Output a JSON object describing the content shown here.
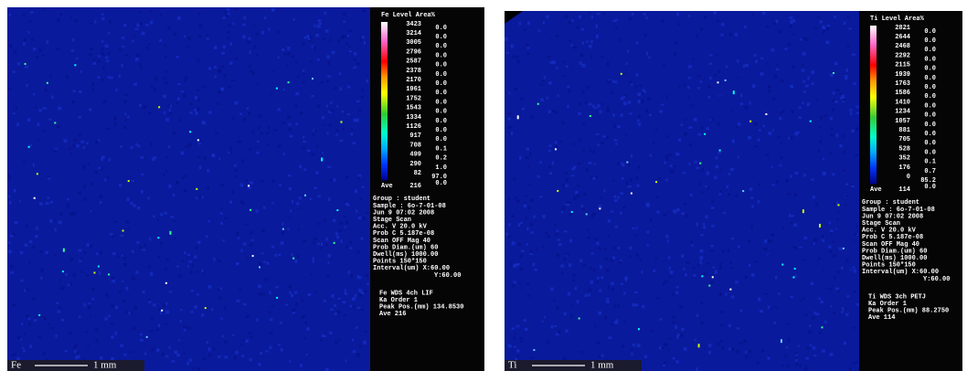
{
  "panels": [
    {
      "element": "Fe",
      "scale": "1 mm",
      "legend": {
        "header": "Fe Level Area%",
        "levels": [
          "3423",
          "3214",
          "3005",
          "2796",
          "2587",
          "2378",
          "2170",
          "1961",
          "1752",
          "1543",
          "1334",
          "1126",
          "917",
          "708",
          "499",
          "290",
          "82"
        ],
        "areas": [
          "0.0",
          "0.0",
          "0.0",
          "0.0",
          "0.0",
          "0.0",
          "0.0",
          "0.0",
          "0.0",
          "0.0",
          "0.0",
          "0.0",
          "0.0",
          "0.1",
          "0.2",
          "1.0",
          "97.0"
        ],
        "ave_label": "Ave",
        "ave_value": "216",
        "ave_area": "0.0"
      },
      "info": [
        "Group : student",
        "Sample : 6o-7-01-08",
        "Jun 9 07:02 2008",
        "Stage Scan",
        "Acc. V    20.0 kV",
        "Prob C  5.187e-08",
        "Scan OFF  Mag 40",
        "Prob Diam.(um) 60",
        "Dwell(ms) 1000.00",
        "Points  150*150",
        "Interval(um) X:60.00",
        "Y:60.00"
      ],
      "spectrometer": [
        "Fe WDS  4ch  LIF",
        "Ka        Order 1",
        "Peak Pos.(mm) 134.8530",
        "Ave        216"
      ]
    },
    {
      "element": "Ti",
      "scale": "1 mm",
      "legend": {
        "header": "Ti Level Area%",
        "levels": [
          "2821",
          "2644",
          "2468",
          "2292",
          "2115",
          "1939",
          "1763",
          "1586",
          "1410",
          "1234",
          "1057",
          "881",
          "705",
          "528",
          "352",
          "176",
          "0"
        ],
        "areas": [
          "0.0",
          "0.0",
          "0.0",
          "0.0",
          "0.0",
          "0.0",
          "0.0",
          "0.0",
          "0.0",
          "0.0",
          "0.0",
          "0.0",
          "0.0",
          "0.0",
          "0.1",
          "0.7",
          "85.2"
        ],
        "ave_label": "Ave",
        "ave_value": "114",
        "ave_area": "0.0"
      },
      "info": [
        "Group : student",
        "Sample : 6o-7-01-08",
        "Jun 9 07:02 2008",
        "Stage Scan",
        "Acc. V    20.0 kV",
        "Prob C  5.187e-08",
        "Scan OFF  Mag 40",
        "Prob Diam.(um) 60",
        "Dwell(ms) 1000.00",
        "Points  150*150",
        "Interval(um) X:60.00",
        "Y:60.00"
      ],
      "spectrometer": [
        "Ti WDS  3ch  PETJ",
        "Ka        Order 1",
        "Peak Pos.(mm) 88.2750",
        "Ave        114"
      ]
    }
  ]
}
